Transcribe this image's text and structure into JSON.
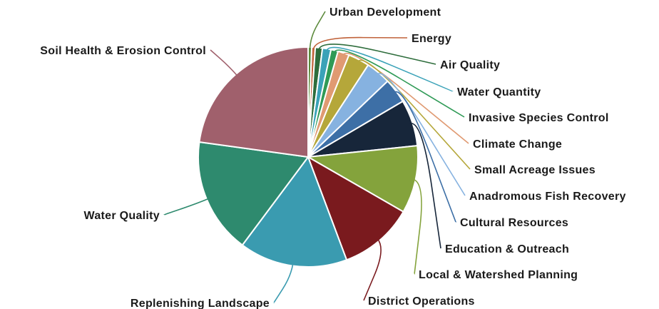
{
  "chart_data": {
    "type": "pie",
    "title": "",
    "categories": [
      "Urban Development",
      "Energy",
      "Air Quality",
      "Water Quantity",
      "Invasive Species Control",
      "Climate Change",
      "Small Acreage Issues",
      "Anadromous Fish Recovery",
      "Cultural Resources",
      "Education & Outreach",
      "Local & Watershed Planning",
      "District Operations",
      "Replenishing Landscape",
      "Water Quality",
      "Soil Health & Erosion Control"
    ],
    "values": [
      0.5,
      0.5,
      1.0,
      1.2,
      1.0,
      1.6,
      3.0,
      3.5,
      3.5,
      6.5,
      9.5,
      10.5,
      15.2,
      16.2,
      21.8
    ],
    "colors": [
      "#5c8a3c",
      "#c0623a",
      "#2e6d3c",
      "#3aa2b8",
      "#2f9a56",
      "#e09a72",
      "#b5a73a",
      "#86b2e0",
      "#3d6fa6",
      "#17263a",
      "#84a33c",
      "#7a1a1e",
      "#3a9bb0",
      "#2e8a6e",
      "#a0606c"
    ]
  }
}
